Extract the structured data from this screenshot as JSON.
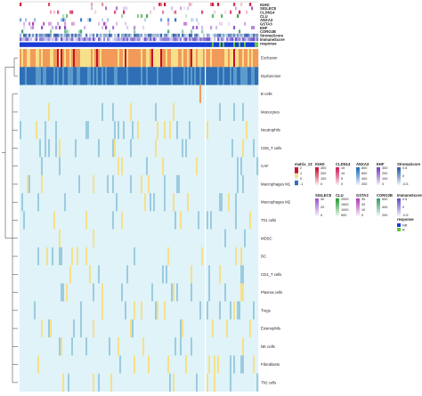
{
  "chart_data": {
    "type": "heatmap",
    "annotation_tracks": [
      "IGHD",
      "SIGLEC8",
      "CLDN14",
      "CLU",
      "ANXA3",
      "GSTA3",
      "EHF",
      "CORO2B",
      "StromaScore",
      "ImmuneScore",
      "response"
    ],
    "rows": [
      "Exclusion",
      "Dysfunction",
      "B cells",
      "Monocytes",
      "Neutrophils",
      "CD8_T cells",
      "CAF",
      "Macrophages M1",
      "Macrophages M2",
      "Th1 cells",
      "MDSC",
      "DC",
      "CD4_T cells",
      "Plasma cells",
      "Tregs",
      "Eosinophils",
      "NK cells",
      "Fibroblasts",
      "Th2 cells"
    ],
    "legends": [
      {
        "title": "matrix_13",
        "kind": "diverging",
        "ticks": [
          "2",
          "1",
          "0",
          "-1"
        ]
      },
      {
        "title": "IGHD",
        "kind": "sequential",
        "ticks": [
          "300",
          "200",
          "100",
          "0"
        ]
      },
      {
        "title": "CLDN14",
        "kind": "sequential",
        "ticks": [
          "15",
          "10",
          "5",
          "0"
        ]
      },
      {
        "title": "ANXA3",
        "kind": "sequential",
        "ticks": [
          "800",
          "600",
          "400",
          "200"
        ]
      },
      {
        "title": "EHF",
        "kind": "sequential",
        "ticks": [
          "300",
          "200",
          "100",
          "0"
        ]
      },
      {
        "title": "StromaScore",
        "kind": "sequential",
        "ticks": [
          "0.5",
          "0",
          "-0.5"
        ]
      },
      {
        "title": "SIGLEC8",
        "kind": "sequential",
        "ticks": [
          "40",
          "20",
          "0"
        ]
      },
      {
        "title": "CLU",
        "kind": "sequential",
        "ticks": [
          "2000",
          "1500",
          "1000",
          "500"
        ]
      },
      {
        "title": "GSTA3",
        "kind": "sequential",
        "ticks": [
          "30",
          "20",
          "10",
          "0"
        ]
      },
      {
        "title": "CORO2B",
        "kind": "sequential",
        "ticks": [
          "600",
          "400",
          "200"
        ]
      },
      {
        "title": "ImmuneScore",
        "kind": "sequential",
        "ticks": [
          "0.5",
          "0",
          "-0.5"
        ]
      }
    ],
    "response_legend": {
      "title": "response",
      "levels": [
        "NR",
        "R"
      ]
    },
    "colors": {
      "high": "#c8102e",
      "mid_high": "#f6e08a",
      "mid": "#dff3f8",
      "low": "#2f6fb6",
      "NR": "#1a3bd6",
      "R": "#62c93a",
      "IGHD": "#c8102e",
      "SIGLEC8": "#9b59d0",
      "CLDN14": "#d0205a",
      "CLU": "#2e9d3a",
      "ANXA3": "#1f6fc0",
      "GSTA3": "#b03fb8",
      "EHF": "#7a3fc0",
      "CORO2B": "#3aa06a",
      "StromaScore": "#2b5ea8",
      "ImmuneScore": "#6a4fc8"
    }
  }
}
